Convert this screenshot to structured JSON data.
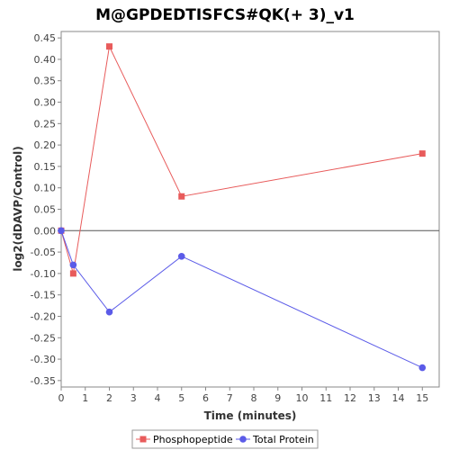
{
  "chart_data": {
    "type": "line",
    "title": "M@GPDEDTISFCS#QK(+ 3)_v1",
    "xlabel": "Time (minutes)",
    "ylabel": "log2(dDAVP/Control)",
    "xlim": [
      0,
      15.7
    ],
    "ylim": [
      -0.365,
      0.465
    ],
    "xticks": [
      0,
      1,
      2,
      3,
      4,
      5,
      6,
      7,
      8,
      9,
      10,
      11,
      12,
      13,
      14,
      15
    ],
    "yticks": [
      -0.35,
      -0.3,
      -0.25,
      -0.2,
      -0.15,
      -0.1,
      -0.05,
      0.0,
      0.05,
      0.1,
      0.15,
      0.2,
      0.25,
      0.3,
      0.35,
      0.4,
      0.45
    ],
    "ytick_labels": [
      "-0.35",
      "-0.30",
      "-0.25",
      "-0.20",
      "-0.15",
      "-0.10",
      "-0.05",
      "0.00",
      "0.05",
      "0.10",
      "0.15",
      "0.20",
      "0.25",
      "0.30",
      "0.35",
      "0.40",
      "0.45"
    ],
    "grid": false,
    "zero_line": true,
    "legend_position": "bottom",
    "series": [
      {
        "name": "Phosphopeptide",
        "color": "#e85b5b",
        "marker": "square",
        "x": [
          0,
          0.5,
          2,
          5,
          15
        ],
        "y": [
          0.0,
          -0.1,
          0.43,
          0.08,
          0.18
        ]
      },
      {
        "name": "Total Protein",
        "color": "#5b5be8",
        "marker": "circle",
        "x": [
          0,
          0.5,
          2,
          5,
          15
        ],
        "y": [
          0.0,
          -0.08,
          -0.19,
          -0.06,
          -0.32
        ]
      }
    ]
  }
}
